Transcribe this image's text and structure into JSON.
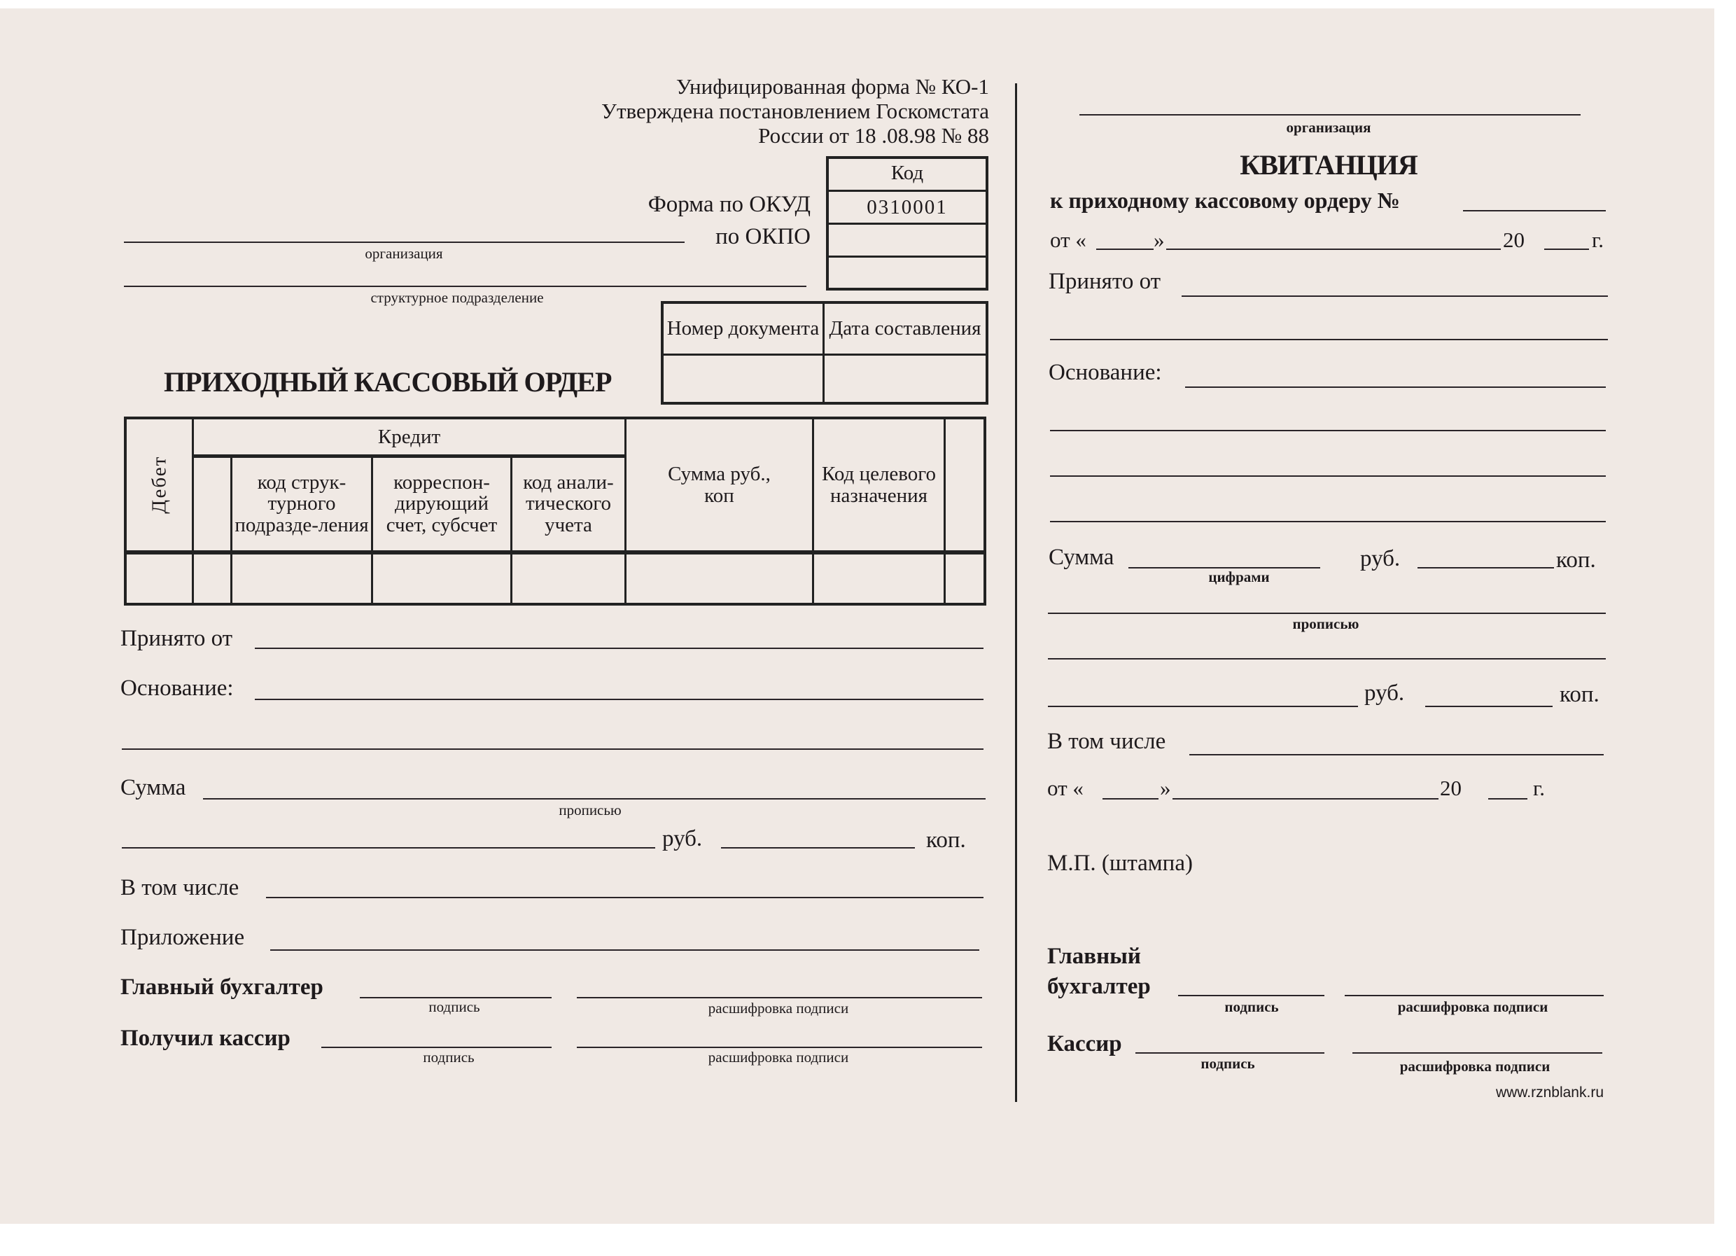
{
  "header": {
    "line1": "Унифицированная форма № КО-1",
    "line2": "Утверждена постановлением Госкомстата",
    "line3": "России от 18 .08.98 № 88"
  },
  "codes": {
    "header": "Код",
    "okud_label": "Форма по ОКУД",
    "okud_value": "0310001",
    "okpo_label": "по ОКПО"
  },
  "org": {
    "label": "организация",
    "subdivision_label": "структурное подразделение"
  },
  "doc": {
    "number_label": "Номер документа",
    "date_label": "Дата составления"
  },
  "title": "ПРИХОДНЫЙ КАССОВЫЙ ОРДЕР",
  "table": {
    "debit": "Дебет",
    "credit": "Кредит",
    "col1": "код струк-турного подразде-ления",
    "col2": "корреспон-дирующий счет, субсчет",
    "col3": "код анали-тического учета",
    "sum": "Сумма руб., коп",
    "target": "Код целевого назначения"
  },
  "left": {
    "received_from": "Принято от",
    "basis": "Основание:",
    "sum": "Сумма",
    "in_words": "прописью",
    "rub": "руб.",
    "kop": "коп.",
    "including": "В том числе",
    "attachment": "Приложение",
    "chief": "Главный бухгалтер",
    "cashier": "Получил кассир",
    "signature": "подпись",
    "signature_decoding": "расшифровка подписи"
  },
  "receipt": {
    "org_label": "организация",
    "title": "КВИТАНЦИЯ",
    "subtitle": "к приходному кассовому ордеру №",
    "date_prefix": "от «",
    "date_close": "»",
    "year": "20",
    "year_suffix": "г.",
    "received_from": "Принято от",
    "basis": "Основание:",
    "sum": "Сумма",
    "digits": "цифрами",
    "rub": "руб.",
    "kop": "коп.",
    "in_words": "прописью",
    "including": "В том числе",
    "date_prefix2": "от «",
    "stamp": "М.П. (штампа)",
    "chief_1": "Главный",
    "chief_2": "бухгалтер",
    "cashier": "Кассир",
    "signature": "подпись",
    "signature_decoding": "расшифровка подписи",
    "website": "www.rznblank.ru"
  }
}
